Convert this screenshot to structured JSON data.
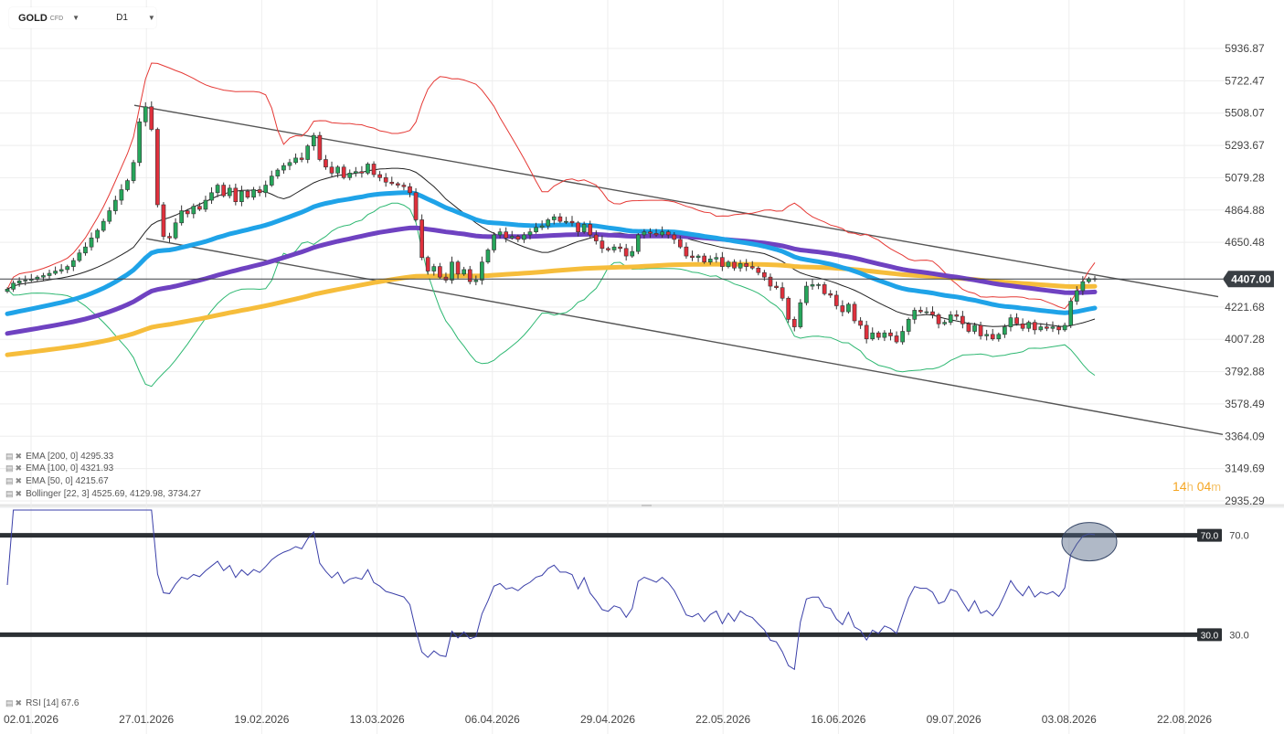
{
  "header": {
    "symbol": "GOLD",
    "symbol_type": "CFD",
    "timeframe": "D1"
  },
  "legend": [
    {
      "icon": "list-icon",
      "text": "EMA [200, 0] 4295.33"
    },
    {
      "icon": "list-icon",
      "text": "EMA [100, 0] 4321.93"
    },
    {
      "icon": "list-icon",
      "text": "EMA [50, 0] 4215.67"
    },
    {
      "icon": "list-icon",
      "text": "Bollinger [22, 3] 4525.69, 4129.98, 3734.27"
    }
  ],
  "rsi_legend": "RSI [14] 67.6",
  "countdown": {
    "hours": "14",
    "h_unit": "h",
    "minutes": "04",
    "m_unit": "m"
  },
  "colors": {
    "bull": "#26a65b",
    "bear": "#e0303c",
    "ema200": "#f6bd3b",
    "ema100": "#6f42c1",
    "ema50": "#1fa3e8",
    "bb_upper": "#e53935",
    "bb_mid": "#222222",
    "bb_lower": "#2eb872",
    "rsi": "#3a3fa8",
    "trend": "#555555",
    "price_tag": "#3a3f44"
  },
  "chart_data": {
    "type": "candlestick",
    "price_axis": {
      "ticks": [
        "5936.87",
        "5722.47",
        "5508.07",
        "5293.67",
        "5079.28",
        "4864.88",
        "4650.48",
        "4221.68",
        "4007.28",
        "3792.88",
        "3578.49",
        "3364.09",
        "3149.69",
        "2935.29"
      ],
      "range": [
        2935.29,
        5936.87
      ]
    },
    "current_price": "4407.00",
    "date_labels": [
      "02.01.2026",
      "27.01.2026",
      "19.02.2026",
      "13.03.2026",
      "06.04.2026",
      "29.04.2026",
      "22.05.2026",
      "16.06.2026",
      "09.07.2026",
      "03.08.2026",
      "22.08.2026"
    ],
    "closes": [
      4340,
      4380,
      4395,
      4400,
      4405,
      4420,
      4430,
      4445,
      4460,
      4470,
      4490,
      4530,
      4580,
      4620,
      4680,
      4730,
      4790,
      4860,
      4930,
      5000,
      5060,
      5180,
      5450,
      5550,
      5400,
      4900,
      4690,
      4680,
      4780,
      4860,
      4840,
      4890,
      4870,
      4930,
      4980,
      5030,
      4960,
      5010,
      4920,
      4990,
      4950,
      5000,
      4980,
      5030,
      5090,
      5130,
      5160,
      5180,
      5210,
      5200,
      5290,
      5360,
      5200,
      5150,
      5110,
      5150,
      5080,
      5110,
      5120,
      5110,
      5170,
      5100,
      5080,
      5050,
      5040,
      5030,
      5020,
      4980,
      4800,
      4550,
      4460,
      4490,
      4420,
      4400,
      4520,
      4440,
      4470,
      4390,
      4400,
      4520,
      4600,
      4700,
      4720,
      4680,
      4690,
      4670,
      4700,
      4720,
      4750,
      4760,
      4800,
      4820,
      4790,
      4790,
      4780,
      4720,
      4770,
      4700,
      4660,
      4610,
      4600,
      4620,
      4610,
      4560,
      4590,
      4700,
      4720,
      4710,
      4700,
      4720,
      4700,
      4670,
      4620,
      4560,
      4550,
      4560,
      4520,
      4540,
      4550,
      4490,
      4520,
      4480,
      4510,
      4490,
      4480,
      4450,
      4420,
      4360,
      4350,
      4280,
      4140,
      4090,
      4250,
      4360,
      4370,
      4370,
      4310,
      4300,
      4230,
      4190,
      4240,
      4130,
      4100,
      4010,
      4050,
      4020,
      4050,
      4030,
      3990,
      4060,
      4140,
      4200,
      4190,
      4190,
      4170,
      4110,
      4120,
      4170,
      4160,
      4110,
      4060,
      4100,
      4030,
      4040,
      4010,
      4040,
      4090,
      4150,
      4110,
      4080,
      4120,
      4070,
      4090,
      4080,
      4090,
      4070,
      4100,
      4260,
      4330,
      4390,
      4410,
      4407
    ],
    "ema50_end": 4215.67,
    "ema100_end": 4321.93,
    "ema200_end": 4295.33,
    "bollinger": {
      "upper": 4525.69,
      "middle": 4129.98,
      "lower": 3734.27
    },
    "rsi": {
      "period": 14,
      "value": 67.6,
      "levels": [
        {
          "label": "70.0",
          "value": 70
        },
        {
          "label": "30.0",
          "value": 30
        }
      ]
    }
  }
}
